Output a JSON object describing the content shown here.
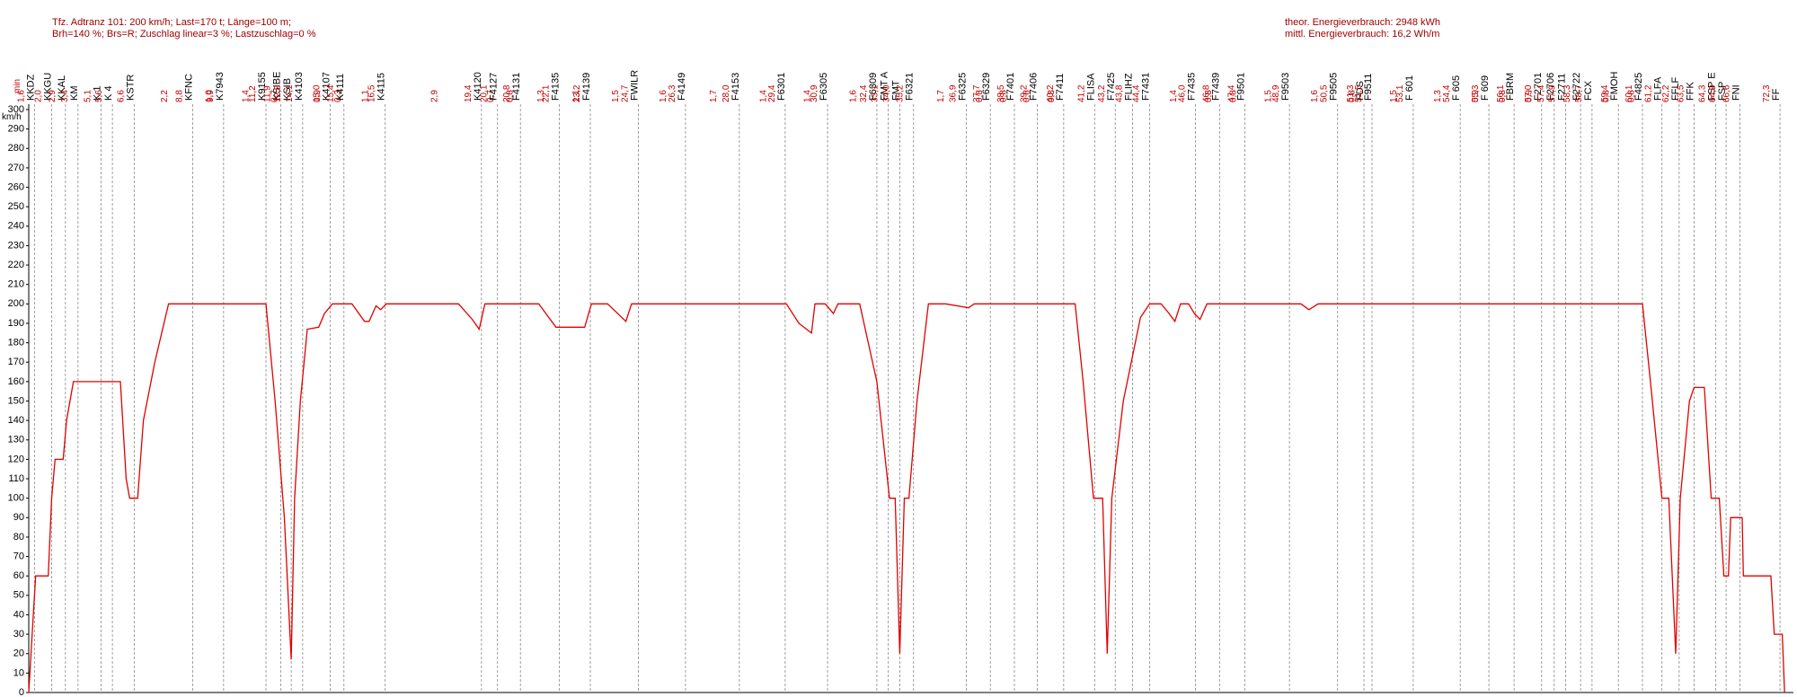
{
  "chart_data": {
    "type": "line",
    "header_left": [
      "Tfz. Adtranz 101: 200 km/h; Last=170 t; Länge=100 m;",
      "Brh=140 %; Brs=R; Zuschlag linear=3 %; Lastzuschlag=0 %"
    ],
    "header_right": [
      "theor. Energieverbrauch: 2948 kWh",
      "mittl. Energieverbrauch: 16,2 Wh/m"
    ],
    "y_label": "km/h",
    "time_label": "min",
    "color": "#e00000",
    "xlim": [
      0,
      153.5
    ],
    "ylim": [
      0,
      300
    ],
    "yticks": [
      0,
      10,
      20,
      30,
      40,
      50,
      60,
      70,
      80,
      90,
      100,
      110,
      120,
      130,
      140,
      150,
      160,
      170,
      180,
      190,
      200,
      210,
      220,
      230,
      240,
      250,
      260,
      270,
      280,
      290,
      300
    ],
    "x": [
      0,
      0.3,
      0.6,
      1.7,
      2.0,
      2.3,
      3.0,
      3.3,
      3.9,
      8.0,
      8.5,
      8.8,
      9.5,
      10.0,
      11.0,
      12.2,
      18.5,
      20.7,
      21.5,
      22.3,
      22.9,
      23.2,
      23.7,
      24.3,
      25.3,
      25.8,
      26.5,
      28.2,
      29.3,
      29.7,
      30.3,
      30.7,
      31.2,
      37.5,
      38.7,
      39.3,
      39.8,
      44.5,
      46.0,
      48.5,
      49.1,
      50.5,
      52.1,
      52.6,
      66.1,
      67.2,
      68.3,
      68.6,
      69.5,
      70.2,
      70.6,
      72.5,
      74.0,
      75.1,
      75.6,
      76.0,
      76.4,
      76.8,
      77.5,
      78.5,
      80.0,
      82.0,
      82.5,
      91.3,
      92.0,
      92.9,
      93.7,
      94.1,
      94.5,
      95.5,
      97.0,
      97.8,
      98.8,
      99.5,
      100.0,
      100.5,
      101.2,
      101.7,
      102.2,
      102.8,
      111.0,
      111.7,
      112.5,
      140.8,
      141.5,
      142.5,
      143.1,
      143.7,
      144.1,
      144.9,
      145.3,
      146.2,
      146.8,
      147.5,
      147.9,
      148.3,
      148.5,
      149.5,
      149.6,
      152.0,
      152.3,
      153.0,
      153.2
    ],
    "values": [
      0,
      30,
      60,
      60,
      100,
      120,
      120,
      140,
      160,
      160,
      110,
      100,
      100,
      140,
      170,
      200,
      200,
      200,
      150,
      90,
      17,
      100,
      150,
      187,
      188,
      195,
      200,
      200,
      191,
      191,
      199,
      197,
      200,
      200,
      192,
      187,
      200,
      200,
      188,
      188,
      200,
      200,
      191,
      200,
      200,
      190,
      185,
      200,
      200,
      195,
      200,
      200,
      160,
      100,
      100,
      20,
      100,
      100,
      150,
      200,
      200,
      198,
      200,
      200,
      160,
      100,
      100,
      20,
      100,
      150,
      193,
      200,
      200,
      195,
      191,
      200,
      200,
      195,
      192,
      200,
      200,
      197,
      200,
      200,
      160,
      100,
      100,
      20,
      100,
      150,
      157,
      157,
      100,
      100,
      60,
      60,
      90,
      90,
      60,
      60,
      30,
      30,
      0
    ],
    "stations": [
      {
        "name": "KKDZ",
        "time": "1,6",
        "x": 0.5
      },
      {
        "name": "KKGU",
        "time": "2,0",
        "x": 2.0
      },
      {
        "name": "KKAL",
        "time": "2,9",
        "x": 3.2
      },
      {
        "name": "KM",
        "time": "3,4",
        "x": 4.3
      },
      {
        "name": "K 1",
        "time": "5,1",
        "x": 6.3
      },
      {
        "name": "K 4",
        "time": "5,6",
        "x": 7.3
      },
      {
        "name": "KSTR",
        "time": "6,6",
        "x": 9.2,
        "interval": "2,2"
      },
      {
        "name": "KFNC",
        "time": "8,8",
        "x": 14.3,
        "interval": "1,0"
      },
      {
        "name": "K7943",
        "time": "9,9",
        "x": 17.0,
        "interval": "1,4"
      },
      {
        "name": "K9155",
        "time": "11,2",
        "x": 20.7,
        "interval": "0,7"
      },
      {
        "name": "KSIBE",
        "time": "11,9",
        "x": 22.0
      },
      {
        "name": "KSIB",
        "time": "12,8",
        "x": 22.9
      },
      {
        "name": "K4103",
        "time": "14,1",
        "x": 23.9,
        "interval": "0,9"
      },
      {
        "name": "K4107",
        "time": "15,0",
        "x": 26.3,
        "interval": "0,3"
      },
      {
        "name": "K4111",
        "time": "15,4",
        "x": 27.5,
        "interval": "1,1"
      },
      {
        "name": "K4115",
        "time": "16,5",
        "x": 31.1,
        "interval": "2,9"
      },
      {
        "name": "K4120",
        "time": "19,4",
        "x": 39.5,
        "interval": "0,7"
      },
      {
        "name": "F4127",
        "time": "20,1",
        "x": 40.9,
        "interval": "0,8"
      },
      {
        "name": "F4131",
        "time": "20,8",
        "x": 42.9,
        "interval": "1,3"
      },
      {
        "name": "F4135",
        "time": "22,1",
        "x": 46.3,
        "interval": "1,1"
      },
      {
        "name": "F4139",
        "time": "23,2",
        "x": 49.0,
        "interval": "1,5"
      },
      {
        "name": "FWILR",
        "time": "24,7",
        "x": 53.2,
        "interval": "1,6"
      },
      {
        "name": "F4149",
        "time": "26,3",
        "x": 57.3,
        "interval": "1,7"
      },
      {
        "name": "F4153",
        "time": "28,0",
        "x": 62.0,
        "interval": "1,4"
      },
      {
        "name": "F6301",
        "time": "29,4",
        "x": 66.0,
        "interval": "1,4"
      },
      {
        "name": "F6305",
        "time": "30,9",
        "x": 69.7,
        "interval": "1,6"
      },
      {
        "name": "F6309",
        "time": "32,4",
        "x": 74.0
      },
      {
        "name": "FMT A",
        "time": "33,1",
        "x": 75.0
      },
      {
        "name": "FMT",
        "time": "34,0",
        "x": 76.0
      },
      {
        "name": "F6321",
        "time": "35,2",
        "x": 77.2,
        "interval": "1,7"
      },
      {
        "name": "F6325",
        "time": "36,9",
        "x": 81.8,
        "interval": "0,8"
      },
      {
        "name": "F6329",
        "time": "37,7",
        "x": 83.9,
        "interval": "0,8"
      },
      {
        "name": "F7401",
        "time": "38,5",
        "x": 86.0,
        "interval": "0,8"
      },
      {
        "name": "F7406",
        "time": "39,2",
        "x": 88.0,
        "interval": "0,8"
      },
      {
        "name": "F7411",
        "time": "40,2",
        "x": 90.3
      },
      {
        "name": "FLISA",
        "time": "41,2",
        "x": 93.0
      },
      {
        "name": "F7425",
        "time": "43,2",
        "x": 94.8
      },
      {
        "name": "FLIHZ",
        "time": "43,8",
        "x": 96.3
      },
      {
        "name": "F7431",
        "time": "44,4",
        "x": 97.8,
        "interval": "1,4"
      },
      {
        "name": "F7435",
        "time": "46,0",
        "x": 101.8,
        "interval": "0,8"
      },
      {
        "name": "F7439",
        "time": "46,8",
        "x": 103.9,
        "interval": "0,8"
      },
      {
        "name": "F9501",
        "time": "47,4",
        "x": 106.1,
        "interval": "1,5"
      },
      {
        "name": "F9503",
        "time": "48,9",
        "x": 110.0,
        "interval": "1,6"
      },
      {
        "name": "F9505",
        "time": "50,5",
        "x": 114.2,
        "interval": "0,8"
      },
      {
        "name": "FDS",
        "time": "51,3",
        "x": 116.5
      },
      {
        "name": "F9511",
        "time": "51,5",
        "x": 117.2,
        "interval": "1,5"
      },
      {
        "name": "F 601",
        "time": "53,1",
        "x": 120.8,
        "interval": "1,3"
      },
      {
        "name": "F 605",
        "time": "54,4",
        "x": 124.9,
        "interval": "0,9"
      },
      {
        "name": "F 609",
        "time": "55,3",
        "x": 127.4,
        "interval": "0,8"
      },
      {
        "name": "FBRM",
        "time": "56,1",
        "x": 129.6,
        "interval": "0,9"
      },
      {
        "name": "F2701",
        "time": "57,0",
        "x": 132.0
      },
      {
        "name": "F2706",
        "time": "57,4",
        "x": 133.1
      },
      {
        "name": "F2711",
        "time": "57,9",
        "x": 134.1
      },
      {
        "name": "F2722",
        "time": "58,3",
        "x": 135.4
      },
      {
        "name": "FCX",
        "time": "58,7",
        "x": 136.4,
        "interval": "0,8"
      },
      {
        "name": "FMOH",
        "time": "59,4",
        "x": 138.7,
        "interval": "0,8"
      },
      {
        "name": "F4825",
        "time": "60,1",
        "x": 140.8
      },
      {
        "name": "FLFA",
        "time": "61,2",
        "x": 142.5
      },
      {
        "name": "FFLF",
        "time": "62,2",
        "x": 144.0
      },
      {
        "name": "FFK",
        "time": "63,5",
        "x": 145.3
      },
      {
        "name": "FSP E",
        "time": "64,3",
        "x": 147.2
      },
      {
        "name": "FSP",
        "time": "64,9",
        "x": 148.1
      },
      {
        "name": "FNI",
        "time": "66,6",
        "x": 149.3
      },
      {
        "name": "FF",
        "time": "72,3",
        "x": 152.8
      }
    ]
  }
}
